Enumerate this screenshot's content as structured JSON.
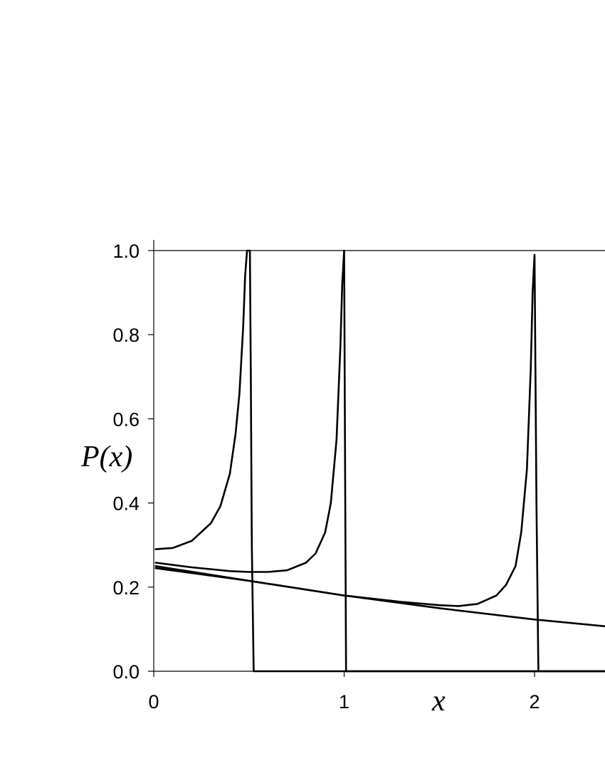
{
  "chart_data": {
    "type": "line",
    "title": "",
    "xlabel": "x",
    "ylabel": "P(x)",
    "xlim": [
      0,
      2.37
    ],
    "ylim": [
      0,
      1.0
    ],
    "x_ticks": [
      0,
      1,
      2
    ],
    "x_tick_labels": [
      "0",
      "1",
      "2"
    ],
    "y_ticks": [
      0,
      0.2,
      0.4,
      0.6,
      0.8,
      1.0
    ],
    "y_tick_labels": [
      "0.0",
      "0.2",
      "0.4",
      "0.6",
      "0.8",
      "1.0"
    ],
    "grid": false,
    "legend": "none",
    "series": [
      {
        "x": [
          0.01,
          0.1,
          0.2,
          0.3,
          0.35,
          0.4,
          0.43,
          0.45,
          0.47,
          0.48,
          0.49,
          0.5,
          0.505,
          0.51,
          0.515,
          0.525,
          0.6,
          1.0,
          1.5,
          2.0,
          2.37
        ],
        "y": [
          0.29,
          0.293,
          0.31,
          0.352,
          0.392,
          0.47,
          0.565,
          0.66,
          0.82,
          0.94,
          1.0,
          1.0,
          1.0,
          0.7,
          0.3,
          0.0,
          0.0,
          0.0,
          0.0,
          0.0,
          0.0
        ]
      },
      {
        "x": [
          0.01,
          0.2,
          0.4,
          0.5,
          0.6,
          0.7,
          0.8,
          0.85,
          0.9,
          0.93,
          0.96,
          0.98,
          0.99,
          1.0,
          1.005,
          1.01,
          1.2,
          1.5,
          2.0,
          2.37
        ],
        "y": [
          0.258,
          0.247,
          0.238,
          0.236,
          0.236,
          0.24,
          0.258,
          0.28,
          0.33,
          0.4,
          0.55,
          0.77,
          0.92,
          1.0,
          0.5,
          0.0,
          0.0,
          0.0,
          0.0,
          0.0
        ]
      },
      {
        "x": [
          0.01,
          0.5,
          1.0,
          1.3,
          1.5,
          1.6,
          1.7,
          1.8,
          1.85,
          1.9,
          1.93,
          1.96,
          1.98,
          1.99,
          2.0,
          2.01,
          2.02,
          2.1,
          2.37
        ],
        "y": [
          0.25,
          0.215,
          0.18,
          0.165,
          0.157,
          0.155,
          0.16,
          0.18,
          0.205,
          0.25,
          0.33,
          0.48,
          0.72,
          0.9,
          0.99,
          0.4,
          0.0,
          0.0,
          0.0
        ]
      },
      {
        "x": [
          0.01,
          0.5,
          1.0,
          1.5,
          2.0,
          2.37
        ],
        "y": [
          0.245,
          0.215,
          0.18,
          0.15,
          0.123,
          0.107
        ]
      }
    ]
  }
}
